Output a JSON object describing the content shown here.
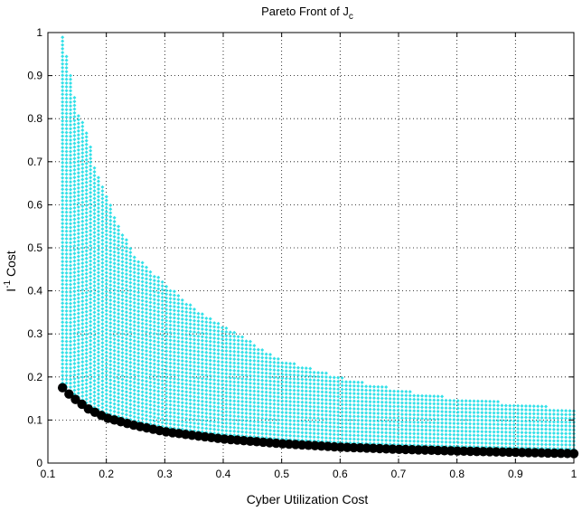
{
  "chart_data": {
    "type": "scatter",
    "title": "Pareto Front of J",
    "title_subscript": "c",
    "xlabel": "Cyber Utilization Cost",
    "ylabel_base": "I",
    "ylabel_superscript": "-1",
    "ylabel_suffix": " Cost",
    "xlim": [
      0.1,
      1.0
    ],
    "ylim": [
      0,
      1.0
    ],
    "xticks": [
      "0.1",
      "0.2",
      "0.3",
      "0.4",
      "0.5",
      "0.6",
      "0.7",
      "0.8",
      "0.9",
      "1"
    ],
    "yticks": [
      "0",
      "0.1",
      "0.2",
      "0.3",
      "0.4",
      "0.5",
      "0.6",
      "0.7",
      "0.8",
      "0.9",
      "1"
    ],
    "grid": true,
    "legend": "none",
    "colors": {
      "cloud": "#33e0e8",
      "front": "#000000"
    },
    "series": [
      {
        "role": "feasible-set",
        "marker": "diamond",
        "x_range": [
          0.125,
          1.0
        ],
        "column_count": 129,
        "upper_envelope": [
          {
            "x": 0.125,
            "y": 0.99
          },
          {
            "x": 0.14,
            "y": 0.9
          },
          {
            "x": 0.15,
            "y": 0.82
          },
          {
            "x": 0.17,
            "y": 0.76
          },
          {
            "x": 0.18,
            "y": 0.69
          },
          {
            "x": 0.2,
            "y": 0.62
          },
          {
            "x": 0.23,
            "y": 0.53
          },
          {
            "x": 0.25,
            "y": 0.48
          },
          {
            "x": 0.3,
            "y": 0.42
          },
          {
            "x": 0.35,
            "y": 0.36
          },
          {
            "x": 0.4,
            "y": 0.32
          },
          {
            "x": 0.5,
            "y": 0.24
          },
          {
            "x": 0.6,
            "y": 0.2
          },
          {
            "x": 0.7,
            "y": 0.17
          },
          {
            "x": 0.8,
            "y": 0.15
          },
          {
            "x": 0.9,
            "y": 0.14
          },
          {
            "x": 1.0,
            "y": 0.125
          }
        ],
        "lower_bound": "pareto-front"
      },
      {
        "role": "pareto-front",
        "marker": "circle",
        "points": [
          {
            "x": 0.125,
            "y": 0.175
          },
          {
            "x": 0.14,
            "y": 0.155
          },
          {
            "x": 0.15,
            "y": 0.145
          },
          {
            "x": 0.17,
            "y": 0.125
          },
          {
            "x": 0.2,
            "y": 0.105
          },
          {
            "x": 0.25,
            "y": 0.087
          },
          {
            "x": 0.3,
            "y": 0.073
          },
          {
            "x": 0.35,
            "y": 0.064
          },
          {
            "x": 0.4,
            "y": 0.056
          },
          {
            "x": 0.5,
            "y": 0.045
          },
          {
            "x": 0.6,
            "y": 0.037
          },
          {
            "x": 0.7,
            "y": 0.032
          },
          {
            "x": 0.8,
            "y": 0.028
          },
          {
            "x": 0.9,
            "y": 0.025
          },
          {
            "x": 1.0,
            "y": 0.022
          }
        ]
      }
    ]
  }
}
